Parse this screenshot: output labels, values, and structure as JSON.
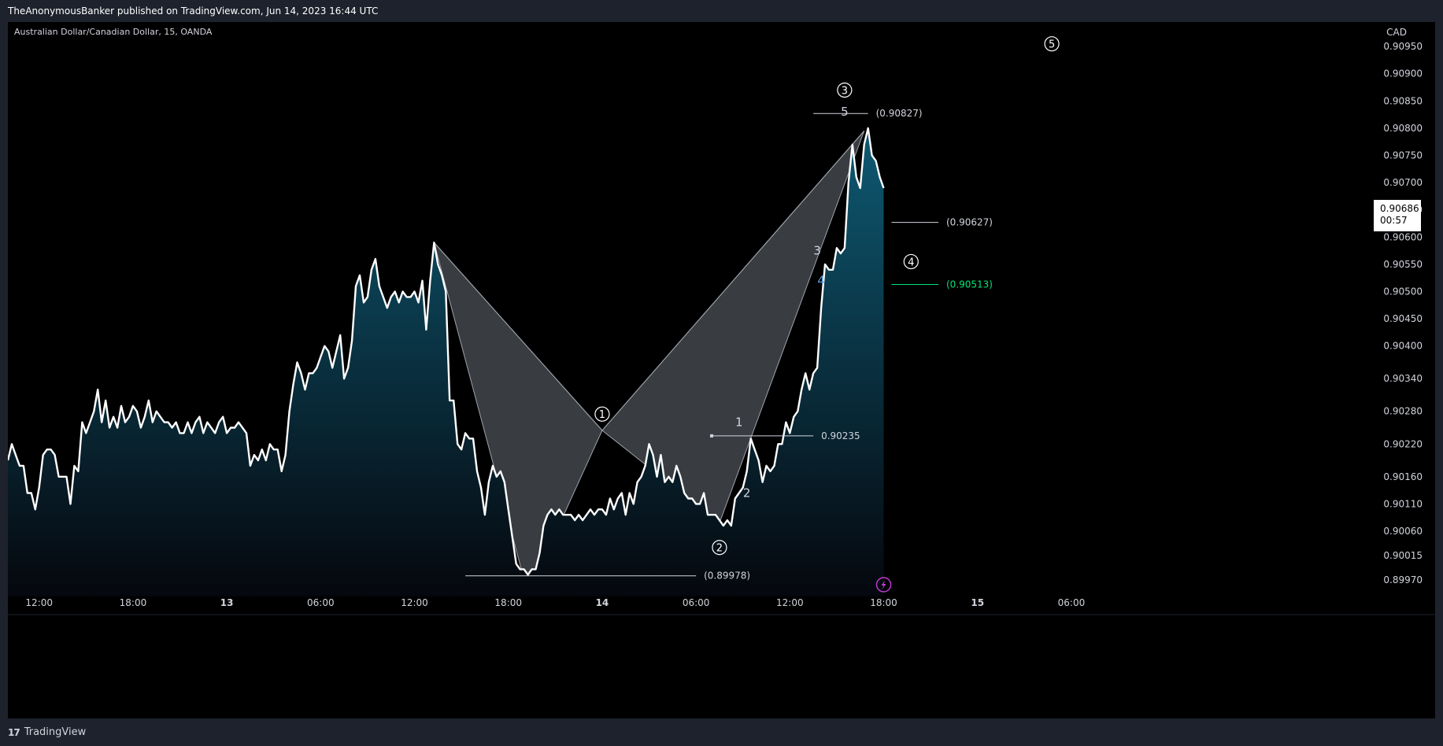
{
  "header": {
    "published": "TheAnonymousBanker published on TradingView.com, Jun 14, 2023 16:44 UTC"
  },
  "symbol_label": "Australian Dollar/Canadian Dollar, 15, OANDA",
  "currency": "CAD",
  "price_tag": {
    "price": "0.90686",
    "countdown": "00:57"
  },
  "footer": {
    "brand": "TradingView",
    "brand_icon": "tradingview-logo-icon"
  },
  "chart_data": {
    "type": "area",
    "ylim": [
      0.8994,
      0.90995
    ],
    "xlim": [
      0,
      300
    ],
    "x_ticks": [
      {
        "label": "12:00",
        "x": 8
      },
      {
        "label": "18:00",
        "x": 32
      },
      {
        "label": "13",
        "x": 56
      },
      {
        "label": "06:00",
        "x": 80
      },
      {
        "label": "12:00",
        "x": 104
      },
      {
        "label": "18:00",
        "x": 128
      },
      {
        "label": "14",
        "x": 152
      },
      {
        "label": "06:00",
        "x": 176
      },
      {
        "label": "12:00",
        "x": 200
      },
      {
        "label": "18:00",
        "x": 224
      },
      {
        "label": "15",
        "x": 248
      },
      {
        "label": "06:00",
        "x": 272
      }
    ],
    "y_ticks": [
      "0.90950",
      "0.90900",
      "0.90850",
      "0.90800",
      "0.90750",
      "0.90700",
      "0.90650",
      "0.90600",
      "0.90550",
      "0.90500",
      "0.90450",
      "0.90400",
      "0.90340",
      "0.90280",
      "0.90220",
      "0.90160",
      "0.90110",
      "0.90060",
      "0.90015",
      "0.89970"
    ],
    "series": [
      {
        "values": [
          [
            0,
            0.9019
          ],
          [
            1,
            0.9022
          ],
          [
            2,
            0.902
          ],
          [
            3,
            0.9018
          ],
          [
            4,
            0.9018
          ],
          [
            5,
            0.9013
          ],
          [
            6,
            0.9013
          ],
          [
            7,
            0.901
          ],
          [
            8,
            0.9014
          ],
          [
            9,
            0.902
          ],
          [
            10,
            0.9021
          ],
          [
            11,
            0.9021
          ],
          [
            12,
            0.902
          ],
          [
            13,
            0.9016
          ],
          [
            14,
            0.9016
          ],
          [
            15,
            0.9016
          ],
          [
            16,
            0.9011
          ],
          [
            17,
            0.9018
          ],
          [
            18,
            0.9017
          ],
          [
            19,
            0.9026
          ],
          [
            20,
            0.9024
          ],
          [
            21,
            0.9026
          ],
          [
            22,
            0.9028
          ],
          [
            23,
            0.9032
          ],
          [
            24,
            0.9026
          ],
          [
            25,
            0.903
          ],
          [
            26,
            0.9025
          ],
          [
            27,
            0.9027
          ],
          [
            28,
            0.9025
          ],
          [
            29,
            0.9029
          ],
          [
            30,
            0.9026
          ],
          [
            31,
            0.9027
          ],
          [
            32,
            0.9029
          ],
          [
            33,
            0.9028
          ],
          [
            34,
            0.9025
          ],
          [
            35,
            0.9027
          ],
          [
            36,
            0.903
          ],
          [
            37,
            0.9026
          ],
          [
            38,
            0.9028
          ],
          [
            39,
            0.9027
          ],
          [
            40,
            0.9026
          ],
          [
            41,
            0.9026
          ],
          [
            42,
            0.9025
          ],
          [
            43,
            0.9026
          ],
          [
            44,
            0.9024
          ],
          [
            45,
            0.9024
          ],
          [
            46,
            0.9026
          ],
          [
            47,
            0.9024
          ],
          [
            48,
            0.9026
          ],
          [
            49,
            0.9027
          ],
          [
            50,
            0.9024
          ],
          [
            51,
            0.9026
          ],
          [
            52,
            0.9025
          ],
          [
            53,
            0.9024
          ],
          [
            54,
            0.9026
          ],
          [
            55,
            0.9027
          ],
          [
            56,
            0.9024
          ],
          [
            57,
            0.9025
          ],
          [
            58,
            0.9025
          ],
          [
            59,
            0.9026
          ],
          [
            60,
            0.9025
          ],
          [
            61,
            0.9024
          ],
          [
            62,
            0.9018
          ],
          [
            63,
            0.902
          ],
          [
            64,
            0.9019
          ],
          [
            65,
            0.9021
          ],
          [
            66,
            0.9019
          ],
          [
            67,
            0.9022
          ],
          [
            68,
            0.9021
          ],
          [
            69,
            0.9021
          ],
          [
            70,
            0.9017
          ],
          [
            71,
            0.902
          ],
          [
            72,
            0.9028
          ],
          [
            73,
            0.9033
          ],
          [
            74,
            0.9037
          ],
          [
            75,
            0.9035
          ],
          [
            76,
            0.9032
          ],
          [
            77,
            0.9035
          ],
          [
            78,
            0.9035
          ],
          [
            79,
            0.9036
          ],
          [
            80,
            0.9038
          ],
          [
            81,
            0.904
          ],
          [
            82,
            0.9039
          ],
          [
            83,
            0.9036
          ],
          [
            84,
            0.9039
          ],
          [
            85,
            0.9042
          ],
          [
            86,
            0.9034
          ],
          [
            87,
            0.9036
          ],
          [
            88,
            0.9041
          ],
          [
            89,
            0.9051
          ],
          [
            90,
            0.9053
          ],
          [
            91,
            0.9048
          ],
          [
            92,
            0.9049
          ],
          [
            93,
            0.9054
          ],
          [
            94,
            0.9056
          ],
          [
            95,
            0.9051
          ],
          [
            96,
            0.9049
          ],
          [
            97,
            0.9047
          ],
          [
            98,
            0.9049
          ],
          [
            99,
            0.905
          ],
          [
            100,
            0.9048
          ],
          [
            101,
            0.905
          ],
          [
            102,
            0.9049
          ],
          [
            103,
            0.9049
          ],
          [
            104,
            0.905
          ],
          [
            105,
            0.9048
          ],
          [
            106,
            0.9052
          ],
          [
            107,
            0.9043
          ],
          [
            108,
            0.9052
          ],
          [
            109,
            0.9059
          ],
          [
            110,
            0.9055
          ],
          [
            111,
            0.9053
          ],
          [
            112,
            0.905
          ],
          [
            113,
            0.903
          ],
          [
            114,
            0.903
          ],
          [
            115,
            0.9022
          ],
          [
            116,
            0.9021
          ],
          [
            117,
            0.9024
          ],
          [
            118,
            0.9023
          ],
          [
            119,
            0.9023
          ],
          [
            120,
            0.9017
          ],
          [
            121,
            0.9014
          ],
          [
            122,
            0.9009
          ],
          [
            123,
            0.9015
          ],
          [
            124,
            0.9018
          ],
          [
            125,
            0.9016
          ],
          [
            126,
            0.9017
          ],
          [
            127,
            0.9015
          ],
          [
            128,
            0.901
          ],
          [
            129,
            0.9005
          ],
          [
            130,
            0.9
          ],
          [
            131,
            0.8999
          ],
          [
            132,
            0.8999
          ],
          [
            133,
            0.8998
          ],
          [
            134,
            0.8999
          ],
          [
            135,
            0.8999
          ],
          [
            136,
            0.9002
          ],
          [
            137,
            0.9007
          ],
          [
            138,
            0.9009
          ],
          [
            139,
            0.901
          ],
          [
            140,
            0.9009
          ],
          [
            141,
            0.901
          ],
          [
            142,
            0.9009
          ],
          [
            143,
            0.9009
          ],
          [
            144,
            0.9009
          ],
          [
            145,
            0.9008
          ],
          [
            146,
            0.9009
          ],
          [
            147,
            0.9008
          ],
          [
            148,
            0.9009
          ],
          [
            149,
            0.901
          ],
          [
            150,
            0.9009
          ],
          [
            151,
            0.901
          ],
          [
            152,
            0.901
          ],
          [
            153,
            0.9009
          ],
          [
            154,
            0.9012
          ],
          [
            155,
            0.901
          ],
          [
            156,
            0.9012
          ],
          [
            157,
            0.9013
          ],
          [
            158,
            0.9009
          ],
          [
            159,
            0.9013
          ],
          [
            160,
            0.9011
          ],
          [
            161,
            0.9015
          ],
          [
            162,
            0.9016
          ],
          [
            163,
            0.9018
          ],
          [
            164,
            0.9022
          ],
          [
            165,
            0.902
          ],
          [
            166,
            0.9016
          ],
          [
            167,
            0.902
          ],
          [
            168,
            0.9015
          ],
          [
            169,
            0.9016
          ],
          [
            170,
            0.9015
          ],
          [
            171,
            0.9018
          ],
          [
            172,
            0.9016
          ],
          [
            173,
            0.9013
          ],
          [
            174,
            0.9012
          ],
          [
            175,
            0.9012
          ],
          [
            176,
            0.9011
          ],
          [
            177,
            0.9011
          ],
          [
            178,
            0.9013
          ],
          [
            179,
            0.9009
          ],
          [
            180,
            0.9009
          ],
          [
            181,
            0.9009
          ],
          [
            182,
            0.9008
          ],
          [
            183,
            0.9007
          ],
          [
            184,
            0.9008
          ],
          [
            185,
            0.9007
          ],
          [
            186,
            0.9012
          ],
          [
            187,
            0.9013
          ],
          [
            188,
            0.9014
          ],
          [
            189,
            0.9017
          ],
          [
            190,
            0.9023
          ],
          [
            191,
            0.9021
          ],
          [
            192,
            0.9019
          ],
          [
            193,
            0.9015
          ],
          [
            194,
            0.9018
          ],
          [
            195,
            0.9017
          ],
          [
            196,
            0.9018
          ],
          [
            197,
            0.9022
          ],
          [
            198,
            0.9022
          ],
          [
            199,
            0.9026
          ],
          [
            200,
            0.9024
          ],
          [
            201,
            0.9027
          ],
          [
            202,
            0.9028
          ],
          [
            203,
            0.9032
          ],
          [
            204,
            0.9035
          ],
          [
            205,
            0.9032
          ],
          [
            206,
            0.9035
          ],
          [
            207,
            0.9036
          ],
          [
            208,
            0.9047
          ],
          [
            209,
            0.9055
          ],
          [
            210,
            0.9054
          ],
          [
            211,
            0.9054
          ],
          [
            212,
            0.9058
          ],
          [
            213,
            0.9057
          ],
          [
            214,
            0.9058
          ],
          [
            215,
            0.907
          ],
          [
            216,
            0.9077
          ],
          [
            217,
            0.9071
          ],
          [
            218,
            0.9069
          ],
          [
            219,
            0.9077
          ],
          [
            220,
            0.908
          ],
          [
            221,
            0.9075
          ],
          [
            222,
            0.9074
          ],
          [
            223,
            0.9071
          ],
          [
            224,
            0.9069
          ]
        ]
      }
    ],
    "price_levels": [
      {
        "label": "(0.90827)",
        "value": 0.90827
      },
      {
        "label": "(0.90627)",
        "value": 0.90627
      },
      {
        "label": "(0.90513)",
        "value": 0.90513,
        "color": "#00e676"
      },
      {
        "label": "0.90235",
        "value": 0.90235
      },
      {
        "label": "(0.89978)",
        "value": 0.89978
      }
    ],
    "wave_labels": [
      {
        "label": "1",
        "circled": true
      },
      {
        "label": "2",
        "circled": true
      },
      {
        "label": "3",
        "circled": true
      },
      {
        "label": "4",
        "circled": true
      },
      {
        "label": "5",
        "circled": true
      },
      {
        "label": "1",
        "circled": false
      },
      {
        "label": "2",
        "circled": false
      },
      {
        "label": "3",
        "circled": false
      },
      {
        "label": "4",
        "circled": false,
        "color": "#5b9bd5"
      },
      {
        "label": "5",
        "circled": false
      }
    ],
    "colors": {
      "line": "#ffffff",
      "area_top": "#0e5a73",
      "area_bottom": "#05070d",
      "pattern_fill": "#3c4046",
      "pattern_stroke": "#9ea3ab",
      "axis_text": "#d1d4dc",
      "green_level": "#00e676",
      "lightning": "#c33cd6"
    },
    "lightning_icon": "lightning-icon"
  }
}
